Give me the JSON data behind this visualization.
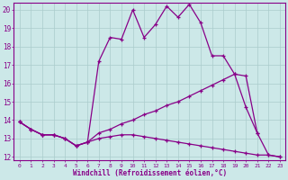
{
  "xlabel": "Windchill (Refroidissement éolien,°C)",
  "xlim": [
    -0.5,
    23.5
  ],
  "ylim": [
    11.8,
    20.4
  ],
  "yticks": [
    12,
    13,
    14,
    15,
    16,
    17,
    18,
    19,
    20
  ],
  "xticks": [
    0,
    1,
    2,
    3,
    4,
    5,
    6,
    7,
    8,
    9,
    10,
    11,
    12,
    13,
    14,
    15,
    16,
    17,
    18,
    19,
    20,
    21,
    22,
    23
  ],
  "bg_color": "#cce8e8",
  "line_color": "#880088",
  "grid_color": "#aacccc",
  "line1_x": [
    0,
    1,
    2,
    3,
    4,
    5,
    6,
    7,
    8,
    9,
    10,
    11,
    12,
    13,
    14,
    15,
    16,
    17,
    18,
    19,
    20,
    21
  ],
  "line1_y": [
    13.9,
    13.5,
    13.2,
    13.2,
    13.0,
    12.6,
    12.8,
    17.2,
    18.5,
    18.4,
    20.0,
    18.5,
    19.2,
    20.2,
    19.6,
    20.3,
    19.3,
    17.5,
    17.5,
    16.5,
    14.7,
    13.3
  ],
  "line2_x": [
    0,
    1,
    2,
    3,
    4,
    5,
    6,
    7,
    8,
    9,
    10,
    11,
    12,
    13,
    14,
    15,
    16,
    17,
    18,
    19,
    20,
    21,
    22,
    23
  ],
  "line2_y": [
    13.9,
    13.5,
    13.2,
    13.2,
    13.0,
    12.6,
    12.8,
    13.3,
    13.5,
    13.8,
    14.0,
    14.3,
    14.5,
    14.8,
    15.0,
    15.3,
    15.6,
    15.9,
    16.2,
    16.5,
    16.4,
    13.3,
    12.1,
    12.0
  ],
  "line3_x": [
    0,
    1,
    2,
    3,
    4,
    5,
    6,
    7,
    8,
    9,
    10,
    11,
    12,
    13,
    14,
    15,
    16,
    17,
    18,
    19,
    20,
    21,
    22,
    23
  ],
  "line3_y": [
    13.9,
    13.5,
    13.2,
    13.2,
    13.0,
    12.6,
    12.8,
    13.0,
    13.1,
    13.2,
    13.2,
    13.1,
    13.0,
    12.9,
    12.8,
    12.7,
    12.6,
    12.5,
    12.4,
    12.3,
    12.2,
    12.1,
    12.1,
    12.0
  ]
}
